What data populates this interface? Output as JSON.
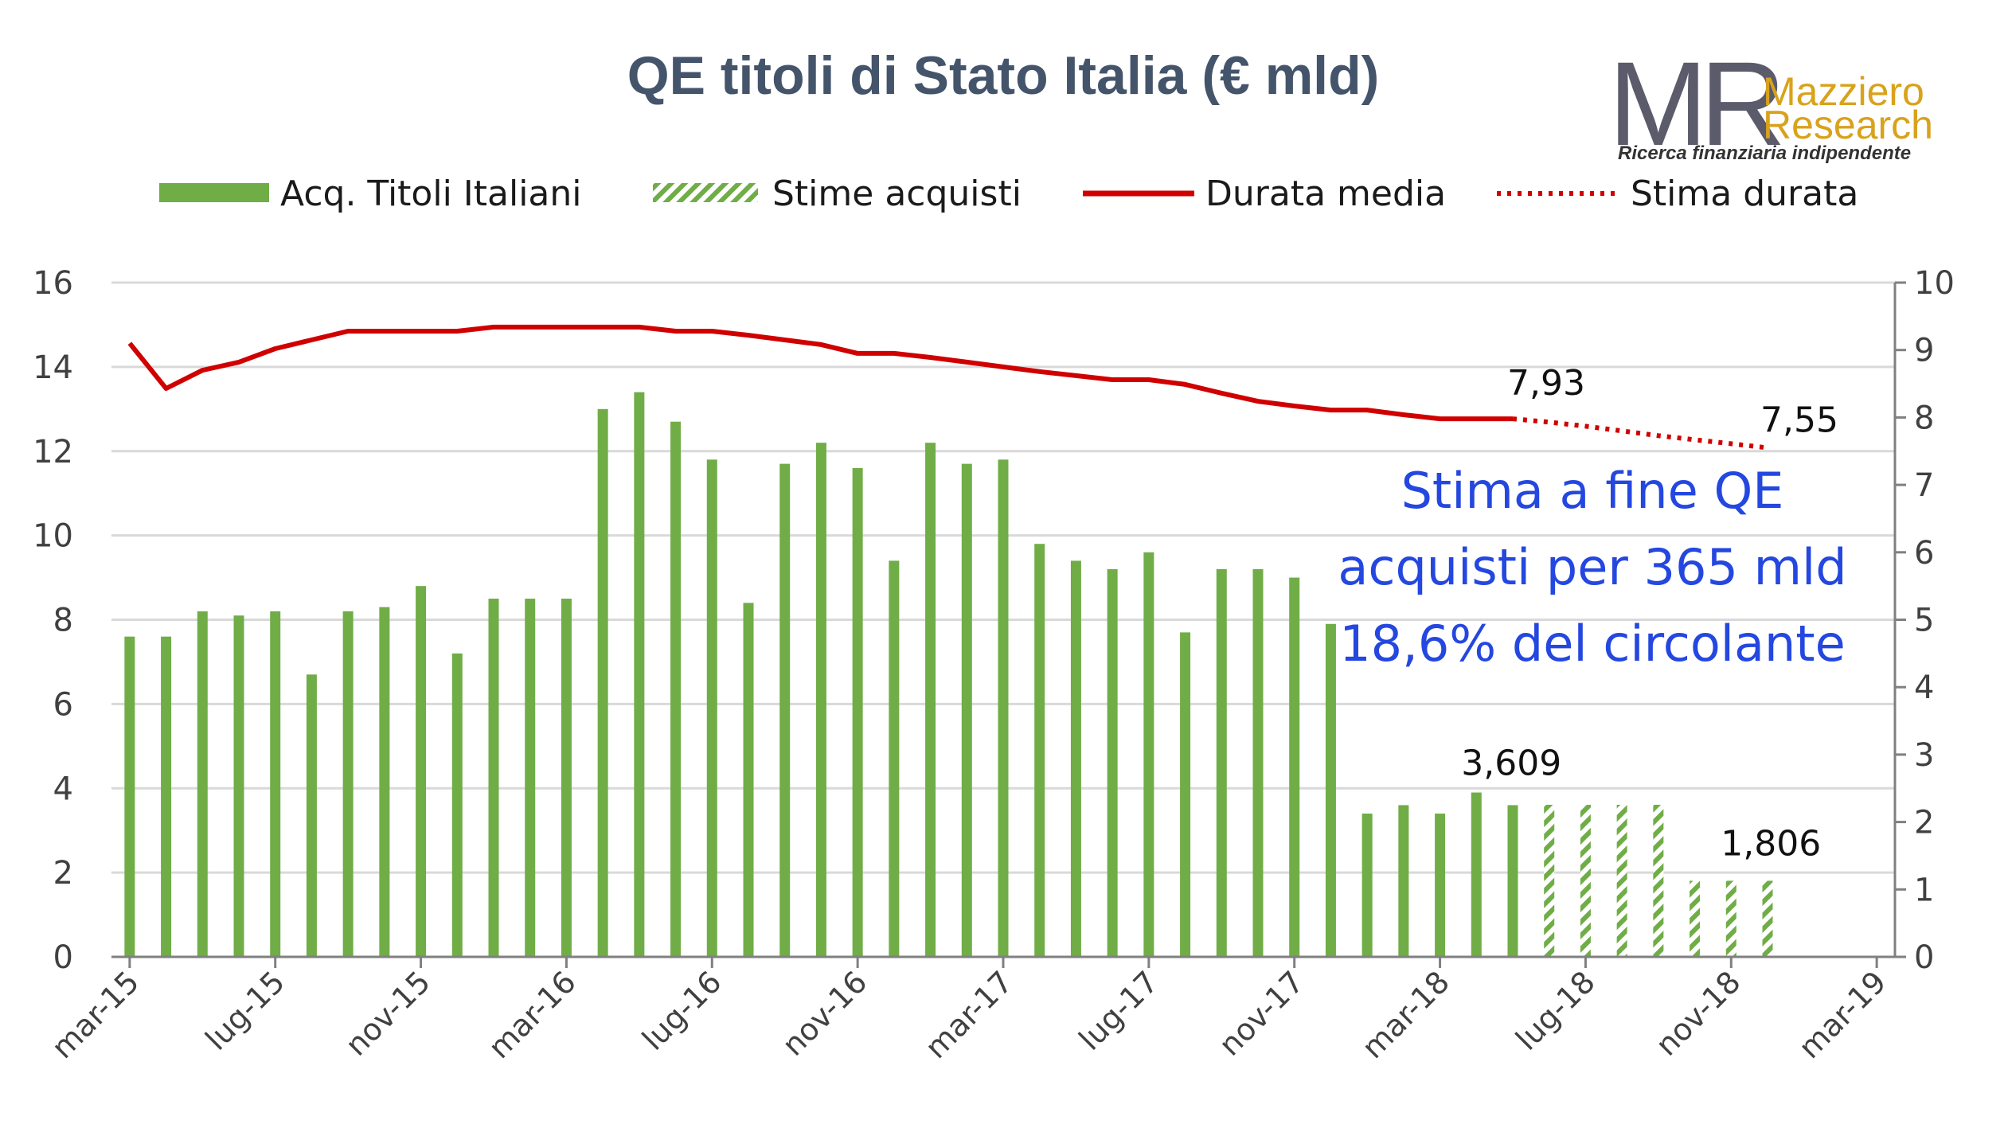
{
  "chart_data": {
    "type": "bar",
    "title": "QE titoli di Stato Italia (€ mld)",
    "x_ticks": [
      "mar-15",
      "lug-15",
      "nov-15",
      "mar-16",
      "lug-16",
      "nov-16",
      "mar-17",
      "lug-17",
      "nov-17",
      "mar-18",
      "lug-18",
      "nov-18",
      "mar-19"
    ],
    "y_left": {
      "ylim": [
        0,
        16
      ],
      "ticks": [
        "0",
        "2",
        "4",
        "6",
        "8",
        "10",
        "12",
        "14",
        "16"
      ]
    },
    "y_right": {
      "ylim": [
        0,
        10
      ],
      "ticks": [
        "0",
        "1",
        "2",
        "3",
        "4",
        "5",
        "6",
        "7",
        "8",
        "9",
        "10"
      ]
    },
    "grid": true,
    "legend": {
      "position": "top",
      "items": [
        {
          "name": "Acq. Titoli Italiani",
          "style": "bar"
        },
        {
          "name": "Stime acquisti",
          "style": "hatched-bar"
        },
        {
          "name": "Durata media",
          "style": "line"
        },
        {
          "name": "Stima durata",
          "style": "dotted-line"
        }
      ]
    },
    "colors": {
      "bars": "#70ad47",
      "line": "#d00000",
      "grid": "#d9d9d9",
      "note": "#2447e0",
      "title": "#44546a"
    },
    "series": [
      {
        "name": "Acq. Titoli Italiani",
        "axis": "left",
        "x": [
          "2015-03",
          "2015-04",
          "2015-05",
          "2015-06",
          "2015-07",
          "2015-08",
          "2015-09",
          "2015-10",
          "2015-11",
          "2015-12",
          "2016-01",
          "2016-02",
          "2016-03",
          "2016-04",
          "2016-05",
          "2016-06",
          "2016-07",
          "2016-08",
          "2016-09",
          "2016-10",
          "2016-11",
          "2016-12",
          "2017-01",
          "2017-02",
          "2017-03",
          "2017-04",
          "2017-05",
          "2017-06",
          "2017-07",
          "2017-08",
          "2017-09",
          "2017-10",
          "2017-11",
          "2017-12",
          "2018-01",
          "2018-02",
          "2018-03",
          "2018-04",
          "2018-05"
        ],
        "values": [
          7.6,
          7.6,
          8.2,
          8.1,
          8.2,
          6.7,
          8.2,
          8.3,
          8.8,
          7.2,
          8.5,
          8.5,
          8.5,
          13.0,
          13.4,
          12.7,
          11.8,
          8.4,
          11.7,
          12.2,
          11.6,
          9.4,
          12.2,
          11.7,
          11.8,
          9.8,
          9.4,
          9.2,
          9.6,
          7.7,
          9.2,
          9.2,
          9.0,
          7.9,
          3.4,
          3.6,
          3.4,
          3.9,
          3.6
        ]
      },
      {
        "name": "Stime acquisti",
        "axis": "left",
        "x": [
          "2018-06",
          "2018-07",
          "2018-08",
          "2018-09",
          "2018-10",
          "2018-11",
          "2018-12"
        ],
        "values": [
          3.609,
          3.609,
          3.609,
          3.609,
          1.806,
          1.806,
          1.806
        ]
      },
      {
        "name": "Durata media",
        "axis": "right",
        "x": [
          "2015-03",
          "2015-04",
          "2015-05",
          "2015-06",
          "2015-07",
          "2015-08",
          "2015-09",
          "2015-10",
          "2015-11",
          "2015-12",
          "2016-01",
          "2016-02",
          "2016-03",
          "2016-04",
          "2016-05",
          "2016-06",
          "2016-07",
          "2016-08",
          "2016-09",
          "2016-10",
          "2016-11",
          "2016-12",
          "2017-01",
          "2017-02",
          "2017-03",
          "2017-04",
          "2017-05",
          "2017-06",
          "2017-07",
          "2017-08",
          "2017-09",
          "2017-10",
          "2017-11",
          "2017-12",
          "2018-01",
          "2018-02",
          "2018-03",
          "2018-04",
          "2018-05"
        ],
        "values": [
          9.1,
          8.43,
          8.7,
          8.82,
          9.02,
          9.15,
          9.28,
          9.28,
          9.28,
          9.28,
          9.34,
          9.34,
          9.34,
          9.34,
          9.34,
          9.28,
          9.28,
          9.22,
          9.15,
          9.08,
          8.95,
          8.95,
          8.89,
          8.82,
          8.75,
          8.68,
          8.62,
          8.56,
          8.56,
          8.49,
          8.36,
          8.24,
          8.17,
          8.11,
          8.11,
          8.04,
          7.98,
          7.98,
          7.98
        ]
      },
      {
        "name": "Stima durata",
        "axis": "right",
        "x": [
          "2018-05",
          "2018-06",
          "2018-07",
          "2018-08",
          "2018-09",
          "2018-10",
          "2018-11",
          "2018-12"
        ],
        "values": [
          7.98,
          7.93,
          7.87,
          7.8,
          7.73,
          7.67,
          7.61,
          7.55
        ]
      }
    ],
    "annotations": [
      {
        "text": "7,93",
        "target": "Durata media end"
      },
      {
        "text": "7,55",
        "target": "Stima durata end"
      },
      {
        "text": "3,609",
        "target": "2018-04 bar"
      },
      {
        "text": "1,806",
        "target": "2018-11 bar"
      }
    ],
    "note": [
      "Stima a fine QE",
      "acquisti per 365 mld",
      "18,6% del circolante"
    ]
  },
  "logo": {
    "mark": "MR",
    "name_line1": "Mazziero",
    "name_line2": "Research",
    "tagline": "Ricerca finanziaria indipendente"
  }
}
